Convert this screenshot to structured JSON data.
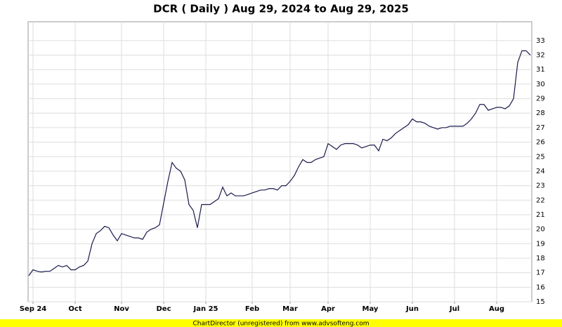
{
  "chart_data": {
    "type": "line",
    "title": "DCR ( Daily ) Aug 29, 2024 to Aug 29, 2025",
    "footer": "ChartDirector (unregistered) from www.advsofteng.com",
    "categories": [
      null,
      "Sep 24",
      null,
      null,
      null,
      null,
      null,
      null,
      null,
      null,
      null,
      "Oct",
      null,
      null,
      null,
      null,
      null,
      null,
      null,
      null,
      null,
      null,
      "Nov",
      null,
      null,
      null,
      null,
      null,
      null,
      null,
      null,
      null,
      "Dec",
      null,
      null,
      null,
      null,
      null,
      null,
      null,
      null,
      null,
      "Jan 25",
      null,
      null,
      null,
      null,
      null,
      null,
      null,
      null,
      null,
      null,
      "Feb",
      null,
      null,
      null,
      null,
      null,
      null,
      null,
      null,
      "Mar",
      null,
      null,
      null,
      null,
      null,
      null,
      null,
      null,
      "Apr",
      null,
      null,
      null,
      null,
      null,
      null,
      null,
      null,
      null,
      "May",
      null,
      null,
      null,
      null,
      null,
      null,
      null,
      null,
      null,
      "Jun",
      null,
      null,
      null,
      null,
      null,
      null,
      null,
      null,
      null,
      "Jul",
      null,
      null,
      null,
      null,
      null,
      null,
      null,
      null,
      null,
      "Aug",
      null,
      null,
      null,
      null,
      null,
      null,
      null,
      null
    ],
    "values": [
      16.8,
      17.2,
      17.1,
      17.05,
      17.1,
      17.1,
      17.3,
      17.5,
      17.4,
      17.5,
      17.2,
      17.2,
      17.4,
      17.5,
      17.8,
      19.0,
      19.7,
      19.9,
      20.2,
      20.1,
      19.6,
      19.2,
      19.7,
      19.6,
      19.5,
      19.4,
      19.4,
      19.3,
      19.8,
      20.0,
      20.1,
      20.3,
      21.8,
      23.3,
      24.6,
      24.2,
      24.0,
      23.4,
      21.7,
      21.3,
      20.1,
      21.7,
      21.7,
      21.7,
      21.9,
      22.1,
      22.9,
      22.3,
      22.5,
      22.3,
      22.3,
      22.3,
      22.4,
      22.5,
      22.6,
      22.7,
      22.7,
      22.8,
      22.8,
      22.7,
      23.0,
      23.0,
      23.3,
      23.7,
      24.3,
      24.8,
      24.6,
      24.6,
      24.8,
      24.9,
      25.0,
      25.9,
      25.7,
      25.5,
      25.8,
      25.9,
      25.9,
      25.9,
      25.8,
      25.6,
      25.7,
      25.8,
      25.8,
      25.4,
      26.2,
      26.1,
      26.3,
      26.6,
      26.8,
      27.0,
      27.2,
      27.6,
      27.4,
      27.4,
      27.3,
      27.1,
      27.0,
      26.9,
      27.0,
      27.0,
      27.1,
      27.1,
      27.1,
      27.1,
      27.3,
      27.6,
      28.0,
      28.6,
      28.6,
      28.2,
      28.3,
      28.4,
      28.4,
      28.3,
      28.5,
      29.0,
      31.5,
      32.3,
      32.3,
      32.0
    ],
    "color": "#1a1a4e",
    "ylim": [
      15,
      34.3
    ],
    "yticks": [
      15,
      16,
      17,
      18,
      19,
      20,
      21,
      22,
      23,
      24,
      25,
      26,
      27,
      28,
      29,
      30,
      31,
      32,
      33
    ],
    "grid": true
  }
}
